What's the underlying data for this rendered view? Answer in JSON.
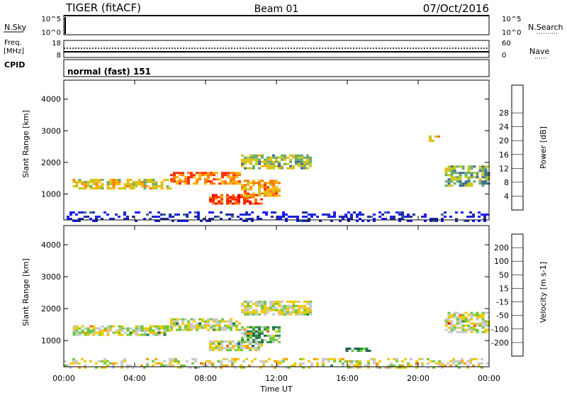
{
  "header": {
    "title": "TIGER (fitACF)",
    "beam": "Beam 01",
    "date": "07/Oct/2016"
  },
  "strips": {
    "nsky_label": "N.Sky",
    "nsearch_label": "N.Search",
    "freq_label": "Freq.",
    "freq_unit": "[MHz]",
    "nave_label": "Nave",
    "cpid_label": "CPID",
    "cpid_value": "normal (fast) 151",
    "nsky_ticks": [
      "10^5",
      "10^0"
    ],
    "nsearch_ticks": [
      "10^5",
      "10^0"
    ],
    "freq_ticks": [
      "18",
      "8"
    ],
    "nave_ticks": [
      "60",
      "0"
    ]
  },
  "chart_data": [
    {
      "type": "heatmap",
      "quantity": "Power",
      "ylabel": "Slant Range [km]",
      "ylim": [
        180,
        4600
      ],
      "yticks": [
        "1000",
        "2000",
        "3000",
        "4000"
      ],
      "colorbar_label": "Power [dB]",
      "colorbar_ticks": [
        "4",
        "8",
        "12",
        "16",
        "20",
        "24",
        "28"
      ],
      "colorbar_colors": [
        "#1e1eff",
        "#1e2ea0",
        "#3c6c8c",
        "#6aaa6a",
        "#c8c81e",
        "#ffb400",
        "#ff7800",
        "#ff2a00",
        "#e60000"
      ],
      "regions": [
        {
          "t0": 0.5,
          "t1": 6.0,
          "r0": 1150,
          "r1": 1480,
          "level": 0.55
        },
        {
          "t0": 6.0,
          "t1": 10.0,
          "r0": 1350,
          "r1": 1700,
          "level": 0.75
        },
        {
          "t0": 10.0,
          "t1": 14.0,
          "r0": 1800,
          "r1": 2250,
          "level": 0.45
        },
        {
          "t0": 8.2,
          "t1": 11.2,
          "r0": 700,
          "r1": 1000,
          "level": 0.85
        },
        {
          "t0": 10.0,
          "t1": 12.1,
          "r0": 950,
          "r1": 1450,
          "level": 0.65
        },
        {
          "t0": 21.5,
          "t1": 24.0,
          "r0": 1250,
          "r1": 1900,
          "level": 0.4
        },
        {
          "t0": 20.6,
          "t1": 21.2,
          "r0": 2650,
          "r1": 2850,
          "level": 0.6
        },
        {
          "t0": 0.0,
          "t1": 24.0,
          "r0": 180,
          "r1": 450,
          "level": 0.05
        }
      ]
    },
    {
      "type": "heatmap",
      "quantity": "Velocity",
      "ylabel": "Slant Range [km]",
      "xlabel": "Time UT",
      "ylim": [
        180,
        4600
      ],
      "yticks": [
        "1000",
        "2000",
        "3000",
        "4000"
      ],
      "xticks": [
        "00:00",
        "04:00",
        "08:00",
        "12:00",
        "16:00",
        "20:00",
        "00:00"
      ],
      "colorbar_label": "Velocity [m s-1]",
      "colorbar_ticks": [
        "200",
        "100",
        "50",
        "15",
        "-15",
        "-50",
        "-100",
        "-200"
      ],
      "colorbar_colors": [
        "#1e46c8",
        "#1e6450",
        "#2a8c3c",
        "#6ec83c",
        "#c8c8c8",
        "#f0c800",
        "#ff9600",
        "#ff5a00",
        "#e60000"
      ],
      "regions": [
        {
          "t0": 0.5,
          "t1": 6.0,
          "r0": 1150,
          "r1": 1480,
          "level": 0.5
        },
        {
          "t0": 6.0,
          "t1": 10.0,
          "r0": 1350,
          "r1": 1700,
          "level": 0.5
        },
        {
          "t0": 10.0,
          "t1": 14.0,
          "r0": 1800,
          "r1": 2250,
          "level": 0.5
        },
        {
          "t0": 8.2,
          "t1": 11.2,
          "r0": 700,
          "r1": 1000,
          "level": 0.5
        },
        {
          "t0": 10.0,
          "t1": 12.1,
          "r0": 950,
          "r1": 1450,
          "level": 0.3
        },
        {
          "t0": 21.5,
          "t1": 24.0,
          "r0": 1250,
          "r1": 1900,
          "level": 0.5
        },
        {
          "t0": 15.9,
          "t1": 17.3,
          "r0": 650,
          "r1": 780,
          "level": 0.25
        },
        {
          "t0": 0.0,
          "t1": 24.0,
          "r0": 180,
          "r1": 450,
          "level": 0.55
        }
      ]
    }
  ]
}
